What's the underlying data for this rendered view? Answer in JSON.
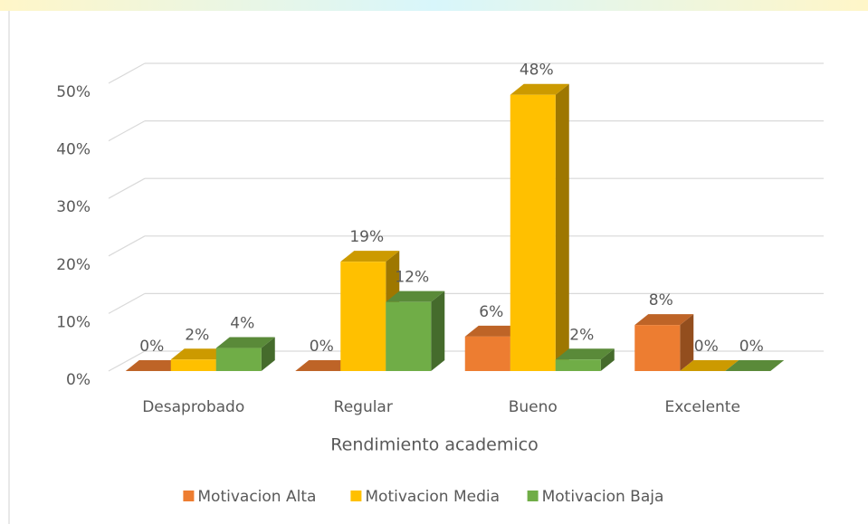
{
  "chart_data": {
    "type": "bar3d",
    "x_label": "Rendimiento academico",
    "categories": [
      "Desaprobado",
      "Regular",
      "Bueno",
      "Excelente"
    ],
    "series": [
      {
        "name": "Motivacion Alta",
        "color": "#ed7d31",
        "values": [
          0,
          0,
          6,
          8
        ],
        "value_labels": [
          "0%",
          "0%",
          "6%",
          "8%"
        ]
      },
      {
        "name": "Motivacion Media",
        "color": "#ffc000",
        "values": [
          2,
          19,
          48,
          0
        ],
        "value_labels": [
          "2%",
          "19%",
          "48%",
          "0%"
        ]
      },
      {
        "name": "Motivacion Baja",
        "color": "#70ad47",
        "values": [
          4,
          12,
          2,
          0
        ],
        "value_labels": [
          "4%",
          "12%",
          "2%",
          "0%"
        ]
      }
    ],
    "ylim": [
      0,
      50
    ],
    "yticks": [
      {
        "value": 0,
        "label": "0%"
      },
      {
        "value": 10,
        "label": "10%"
      },
      {
        "value": 20,
        "label": "20%"
      },
      {
        "value": 30,
        "label": "30%"
      },
      {
        "value": 40,
        "label": "40%"
      },
      {
        "value": 50,
        "label": "50%"
      }
    ],
    "grid": true,
    "legend": "bottom"
  }
}
